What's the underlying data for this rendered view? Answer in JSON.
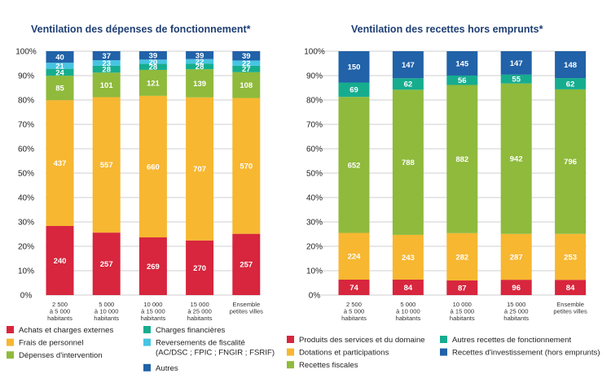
{
  "colors": {
    "achats": "#d7263d",
    "personnel": "#f7b731",
    "intervention": "#8fba3c",
    "financieres": "#16ad8f",
    "reversements": "#47c4e2",
    "autres": "#2162a8",
    "title": "#1f3f73",
    "grid": "#cfcfcf"
  },
  "chart_data": [
    {
      "type": "bar",
      "stacked": true,
      "normalized": true,
      "title": "Ventilation des dépenses de fonctionnement*",
      "categories": [
        [
          "2 500",
          "à 5 000",
          "habitants"
        ],
        [
          "5 000",
          "à 10 000",
          "habitants"
        ],
        [
          "10 000",
          "à 15 000",
          "habitants"
        ],
        [
          "15 000",
          "à 25 000",
          "habitants"
        ],
        [
          "Ensemble",
          "petites villes"
        ]
      ],
      "ylim": [
        0,
        100
      ],
      "yticks": [
        "0%",
        "10%",
        "20%",
        "30%",
        "40%",
        "50%",
        "60%",
        "70%",
        "80%",
        "90%",
        "100%"
      ],
      "grid": true,
      "legend_position": "bottom",
      "series": [
        {
          "name": "Achats et charges externes",
          "color": "achats",
          "values": [
            240,
            257,
            269,
            270,
            257
          ]
        },
        {
          "name": "Frais de personnel",
          "color": "personnel",
          "values": [
            437,
            557,
            660,
            707,
            570
          ]
        },
        {
          "name": "Dépenses d'intervention",
          "color": "intervention",
          "values": [
            85,
            101,
            121,
            139,
            108
          ]
        },
        {
          "name": "Charges financières",
          "color": "financieres",
          "values": [
            24,
            28,
            28,
            28,
            27
          ]
        },
        {
          "name": "Reversements de fiscalité (AC/DSC ; FPIC ; FNGIR ; FSRIF)",
          "color": "reversements",
          "values": [
            21,
            23,
            20,
            22,
            22
          ]
        },
        {
          "name": "Autres",
          "color": "autres",
          "values": [
            40,
            37,
            39,
            39,
            39
          ]
        }
      ],
      "legend": [
        {
          "label": "Achats et charges externes",
          "color": "achats"
        },
        {
          "label": "Frais de personnel",
          "color": "personnel"
        },
        {
          "label": "Dépenses d'intervention",
          "color": "intervention"
        },
        {
          "label": "Charges financières",
          "color": "financieres"
        },
        {
          "label": "Reversements de fiscalité",
          "label2": "(AC/DSC ; FPIC ; FNGIR ; FSRIF)",
          "color": "reversements"
        },
        {
          "label": "Autres",
          "color": "autres"
        }
      ]
    },
    {
      "type": "bar",
      "stacked": true,
      "normalized": true,
      "title": "Ventilation des recettes hors emprunts*",
      "categories": [
        [
          "2 500",
          "à 5 000",
          "habitants"
        ],
        [
          "5 000",
          "à 10 000",
          "habitants"
        ],
        [
          "10 000",
          "à 15 000",
          "habitants"
        ],
        [
          "15 000",
          "à 25 000",
          "habitants"
        ],
        [
          "Ensemble",
          "petites villes"
        ]
      ],
      "ylim": [
        0,
        100
      ],
      "yticks": [
        "0%",
        "10%",
        "20%",
        "30%",
        "40%",
        "50%",
        "60%",
        "70%",
        "80%",
        "90%",
        "100%"
      ],
      "grid": true,
      "legend_position": "bottom",
      "series": [
        {
          "name": "Produits des services et du domaine",
          "color": "achats",
          "values": [
            74,
            84,
            87,
            96,
            84
          ]
        },
        {
          "name": "Dotations et participations",
          "color": "personnel",
          "values": [
            224,
            243,
            282,
            287,
            253
          ]
        },
        {
          "name": "Recettes fiscales",
          "color": "intervention",
          "values": [
            652,
            788,
            882,
            942,
            796
          ]
        },
        {
          "name": "Autres recettes de fonctionnement",
          "color": "financieres",
          "values": [
            69,
            62,
            56,
            55,
            62
          ]
        },
        {
          "name": "Recettes d'investissement (hors emprunts)",
          "color": "autres",
          "values": [
            150,
            147,
            145,
            147,
            148
          ]
        }
      ],
      "legend": [
        {
          "label": "Produits des services et du domaine",
          "color": "achats"
        },
        {
          "label": "Dotations et participations",
          "color": "personnel"
        },
        {
          "label": "Recettes fiscales",
          "color": "intervention"
        },
        {
          "label": "Autres recettes de fonctionnement",
          "color": "financieres"
        },
        {
          "label": "Recettes d'investissement (hors emprunts)",
          "color": "autres"
        }
      ]
    }
  ]
}
